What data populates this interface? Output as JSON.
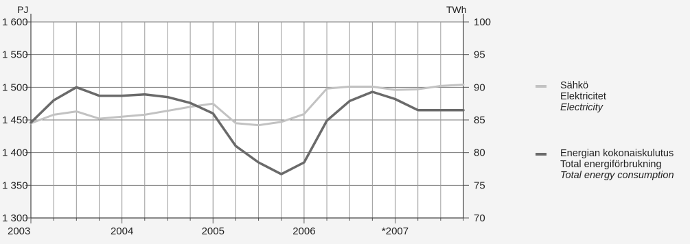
{
  "chart_data": {
    "type": "line",
    "left_axis_unit": "PJ",
    "right_axis_unit": "TWh",
    "left_ticks": [
      "1 600",
      "1 550",
      "1 500",
      "1 450",
      "1 400",
      "1 350",
      "1 300"
    ],
    "right_ticks": [
      "100",
      "95",
      "90",
      "85",
      "80",
      "75",
      "70"
    ],
    "x_tick_labels": [
      "2003",
      "2004",
      "2005",
      "2006",
      "*2007"
    ],
    "ylim_left": [
      1300,
      1600
    ],
    "ylim_right": [
      70,
      100
    ],
    "xlim": [
      2003.0,
      2007.75
    ],
    "grid": true,
    "legend_position": "right",
    "series": [
      {
        "name": "Sähkö / Elektricitet / Electricity",
        "axis": "right",
        "color": "#c2c2c2",
        "x": [
          2003.0,
          2003.25,
          2003.5,
          2003.75,
          2004.0,
          2004.25,
          2004.5,
          2004.75,
          2005.0,
          2005.25,
          2005.5,
          2005.75,
          2006.0,
          2006.25,
          2006.5,
          2006.75,
          2007.0,
          2007.25,
          2007.5,
          2007.75
        ],
        "y": [
          84.5,
          85.8,
          86.3,
          85.2,
          85.5,
          85.8,
          86.4,
          87.0,
          87.5,
          84.5,
          84.2,
          84.7,
          85.9,
          89.8,
          90.1,
          90.1,
          89.6,
          89.7,
          90.2,
          90.4
        ]
      },
      {
        "name": "Energian kokonaiskulutus / Total energiförbrukning / Total energy consumption",
        "axis": "left",
        "color": "#6a6a6a",
        "x": [
          2003.0,
          2003.25,
          2003.5,
          2003.75,
          2004.0,
          2004.25,
          2004.5,
          2004.75,
          2005.0,
          2005.25,
          2005.5,
          2005.75,
          2006.0,
          2006.25,
          2006.5,
          2006.75,
          2007.0,
          2007.25,
          2007.5,
          2007.75
        ],
        "y": [
          1446,
          1480,
          1500,
          1487,
          1487,
          1489,
          1485,
          1476,
          1460,
          1410,
          1385,
          1367,
          1385,
          1449,
          1479,
          1493,
          1482,
          1465,
          1465,
          1465
        ]
      }
    ]
  },
  "legend": {
    "electricity": {
      "fi": "Sähkö",
      "sv": "Elektricitet",
      "en": "Electricity"
    },
    "energy": {
      "fi": "Energian kokonaiskulutus",
      "sv": "Total energiförbrukning",
      "en": "Total energy consumption"
    }
  }
}
